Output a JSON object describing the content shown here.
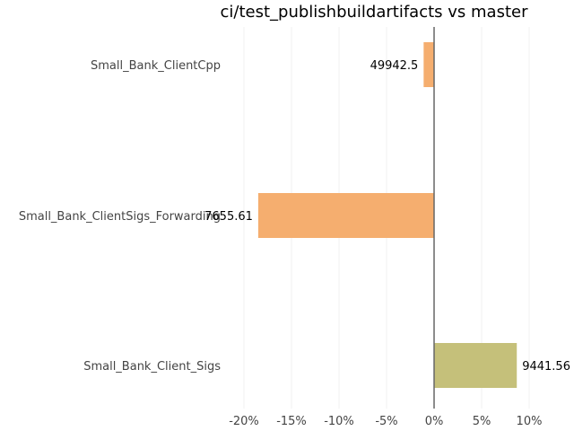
{
  "chart_data": {
    "type": "bar",
    "orientation": "horizontal",
    "title": "ci/test_publishbuildartifacts vs master",
    "xlabel": "",
    "ylabel": "",
    "categories": [
      "Small_Bank_ClientCpp",
      "Small_Bank_ClientSigs_Forwarding",
      "Small_Bank_Client_Sigs"
    ],
    "values": [
      -1.1,
      -18.5,
      8.7
    ],
    "data_labels": [
      "49942.5",
      "7655.61",
      "9441.56"
    ],
    "colors": [
      "#f5ae6f",
      "#f5ae6f",
      "#c5c07a"
    ],
    "xlim": [
      -21,
      11
    ],
    "xticks": [
      -20,
      -15,
      -10,
      -5,
      0,
      5,
      10
    ],
    "xtick_labels": [
      "-20%",
      "-15%",
      "-10%",
      "-5%",
      "0%",
      "5%",
      "10%"
    ],
    "grid": "vertical",
    "legend": "none"
  }
}
